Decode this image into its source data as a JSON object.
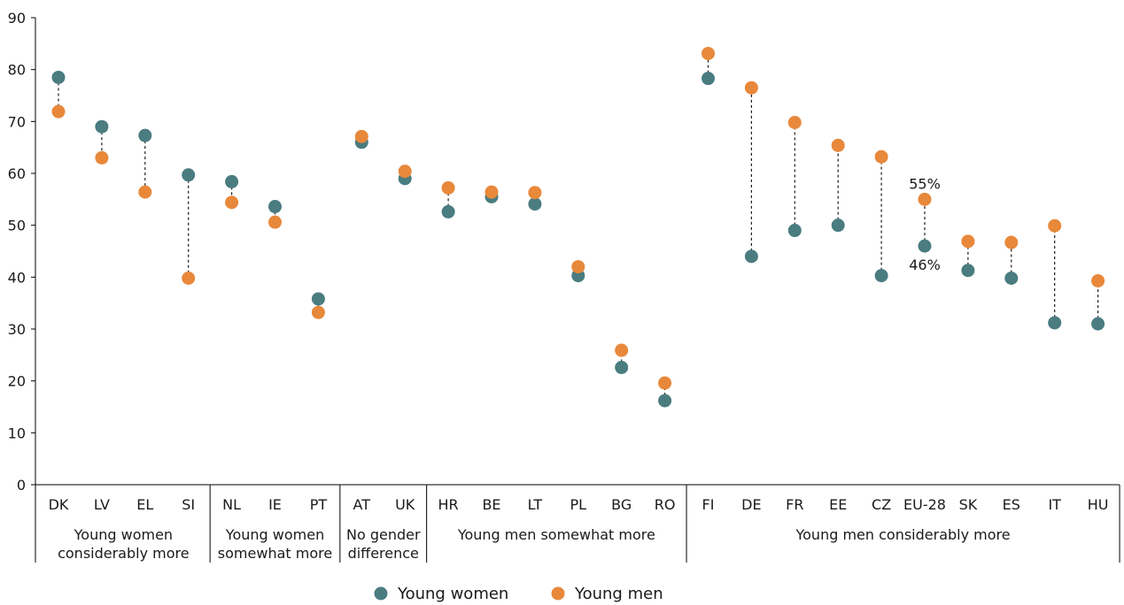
{
  "chart_data": {
    "type": "scatter",
    "title": "",
    "xlabel": "",
    "ylabel": "",
    "ylim": [
      0,
      90
    ],
    "yticks": [
      0,
      10,
      20,
      30,
      40,
      50,
      60,
      70,
      80,
      90
    ],
    "grid": false,
    "legend_position": "bottom-center",
    "categories": [
      "DK",
      "LV",
      "EL",
      "SI",
      "NL",
      "IE",
      "PT",
      "AT",
      "UK",
      "HR",
      "BE",
      "LT",
      "PL",
      "BG",
      "RO",
      "FI",
      "DE",
      "FR",
      "EE",
      "CZ",
      "EU-28",
      "SK",
      "ES",
      "IT",
      "HU"
    ],
    "series": [
      {
        "name": "Young women",
        "color": "#4a7c80",
        "values": [
          78.5,
          69,
          67.3,
          59.7,
          58.4,
          53.6,
          35.8,
          66,
          59,
          52.6,
          55.5,
          54.1,
          40.3,
          22.6,
          16.2,
          78.3,
          44,
          49,
          50,
          40.3,
          46,
          41.3,
          39.8,
          31.2,
          31
        ]
      },
      {
        "name": "Young men",
        "color": "#e8883a",
        "values": [
          71.9,
          63,
          56.4,
          39.8,
          54.4,
          50.6,
          33.2,
          67.1,
          60.4,
          57.2,
          56.4,
          56.3,
          42,
          25.9,
          19.6,
          83.1,
          76.5,
          69.8,
          65.4,
          63.2,
          55,
          46.9,
          46.7,
          49.9,
          39.3
        ]
      }
    ],
    "groups": [
      {
        "lines": [
          "Young women",
          "considerably more"
        ],
        "from": 0,
        "to": 3
      },
      {
        "lines": [
          "Young women",
          "somewhat more"
        ],
        "from": 4,
        "to": 6
      },
      {
        "lines": [
          "No gender",
          "difference"
        ],
        "from": 7,
        "to": 8
      },
      {
        "lines": [
          "Young men somewhat more"
        ],
        "from": 9,
        "to": 14
      },
      {
        "lines": [
          "Young men considerably more"
        ],
        "from": 15,
        "to": 24
      }
    ],
    "annotations": [
      {
        "category": "EU-28",
        "series": "Young men",
        "text": "55%"
      },
      {
        "category": "EU-28",
        "series": "Young women",
        "text": "46%"
      }
    ]
  }
}
